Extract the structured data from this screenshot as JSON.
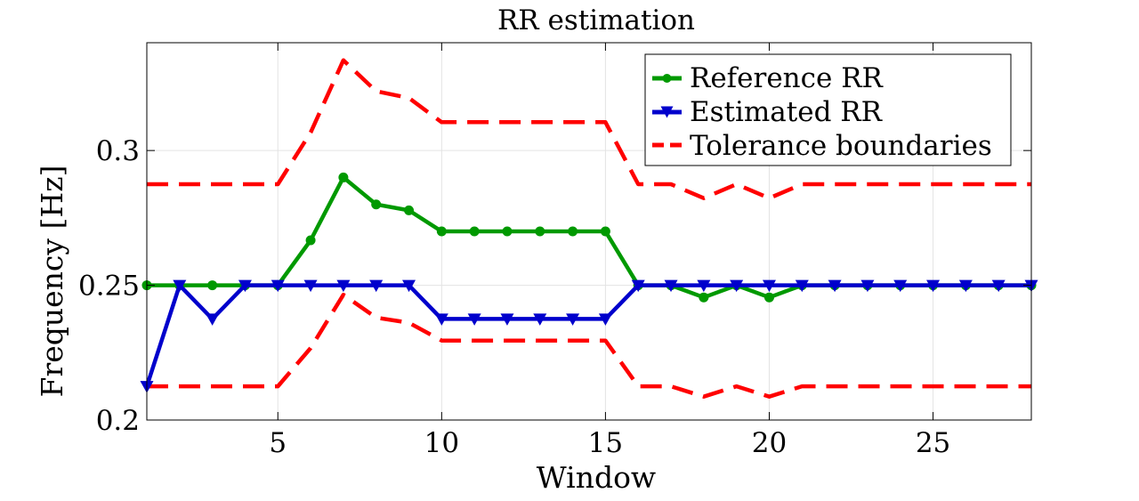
{
  "chart_data": {
    "type": "line",
    "title": "RR estimation",
    "xlabel": "Window",
    "ylabel": "Frequency [Hz]",
    "xlim": [
      1,
      28
    ],
    "ylim": [
      0.2,
      0.34
    ],
    "x_ticks": [
      5,
      10,
      15,
      20,
      25
    ],
    "y_ticks": [
      0.2,
      0.25,
      0.3
    ],
    "y_tick_labels": [
      "0.2",
      "0.25",
      "0.3"
    ],
    "grid": true,
    "legend_position": "top-right",
    "x": [
      1,
      2,
      3,
      4,
      5,
      6,
      7,
      8,
      9,
      10,
      11,
      12,
      13,
      14,
      15,
      16,
      17,
      18,
      19,
      20,
      21,
      22,
      23,
      24,
      25,
      26,
      27,
      28
    ],
    "series": [
      {
        "name": "Reference RR",
        "color": "#009900",
        "marker": "circle",
        "line": "solid",
        "values": [
          0.25,
          0.25,
          0.25,
          0.25,
          0.25,
          0.2667,
          0.29,
          0.28,
          0.2778,
          0.27,
          0.27,
          0.27,
          0.27,
          0.27,
          0.27,
          0.25,
          0.25,
          0.2455,
          0.25,
          0.2455,
          0.25,
          0.25,
          0.25,
          0.25,
          0.25,
          0.25,
          0.25,
          0.25
        ]
      },
      {
        "name": "Estimated RR",
        "color": "#0000cc",
        "marker": "triangle-down",
        "line": "solid",
        "values": [
          0.2125,
          0.25,
          0.2375,
          0.25,
          0.25,
          0.25,
          0.25,
          0.25,
          0.25,
          0.2375,
          0.2375,
          0.2375,
          0.2375,
          0.2375,
          0.2375,
          0.25,
          0.25,
          0.25,
          0.25,
          0.25,
          0.25,
          0.25,
          0.25,
          0.25,
          0.25,
          0.25,
          0.25,
          0.25
        ]
      },
      {
        "name": "Tolerance boundaries",
        "color": "#ff0000",
        "marker": "none",
        "line": "dashed",
        "values": [
          0.2875,
          0.2875,
          0.2875,
          0.2875,
          0.2875,
          0.3067,
          0.3335,
          0.322,
          0.3195,
          0.3105,
          0.3105,
          0.3105,
          0.3105,
          0.3105,
          0.3105,
          0.2875,
          0.2875,
          0.2823,
          0.2875,
          0.2823,
          0.2875,
          0.2875,
          0.2875,
          0.2875,
          0.2875,
          0.2875,
          0.2875,
          0.2875
        ]
      },
      {
        "name": "Tolerance boundaries (lower)",
        "legend": false,
        "color": "#ff0000",
        "marker": "none",
        "line": "dashed",
        "values": [
          0.2125,
          0.2125,
          0.2125,
          0.2125,
          0.2125,
          0.2267,
          0.2465,
          0.238,
          0.2361,
          0.2295,
          0.2295,
          0.2295,
          0.2295,
          0.2295,
          0.2295,
          0.2125,
          0.2125,
          0.2087,
          0.2125,
          0.2087,
          0.2125,
          0.2125,
          0.2125,
          0.2125,
          0.2125,
          0.2125,
          0.2125,
          0.2125
        ]
      }
    ]
  }
}
